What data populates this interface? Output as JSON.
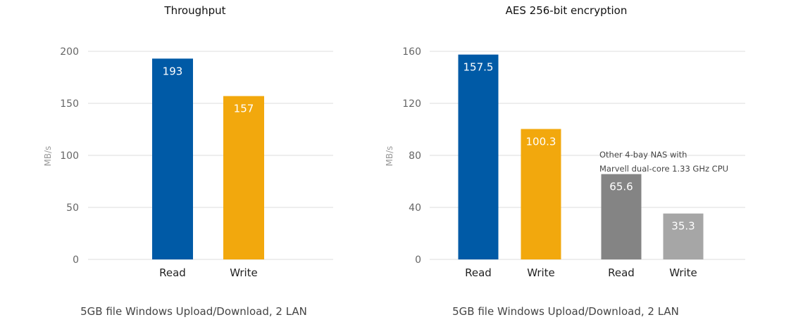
{
  "chart_data": [
    {
      "type": "bar",
      "title": "Throughput",
      "ylabel": "MB/s",
      "ylim": [
        0,
        200
      ],
      "yticks": [
        0,
        50,
        100,
        150,
        200
      ],
      "categories": [
        "Read",
        "Write"
      ],
      "values": [
        193,
        157
      ],
      "value_labels": [
        "193",
        "157"
      ],
      "colors": [
        "#005aa6",
        "#f2a80d"
      ],
      "footer": "5GB file Windows Upload/Download, 2 LAN",
      "grid": true
    },
    {
      "type": "bar",
      "title": "AES 256-bit encryption",
      "ylabel": "MB/s",
      "ylim": [
        0,
        160
      ],
      "yticks": [
        0,
        40,
        80,
        120,
        160
      ],
      "categories": [
        "Read",
        "Write",
        "Read",
        "Write"
      ],
      "values": [
        157.5,
        100.3,
        65.6,
        35.3
      ],
      "value_labels": [
        "157.5",
        "100.3",
        "65.6",
        "35.3"
      ],
      "colors": [
        "#005aa6",
        "#f2a80d",
        "#848484",
        "#a6a6a6"
      ],
      "annotation": [
        "Other 4-bay NAS with",
        "Marvell dual-core 1.33 GHz CPU"
      ],
      "footer": "5GB file Windows Upload/Download, 2 LAN",
      "grid": true
    }
  ]
}
